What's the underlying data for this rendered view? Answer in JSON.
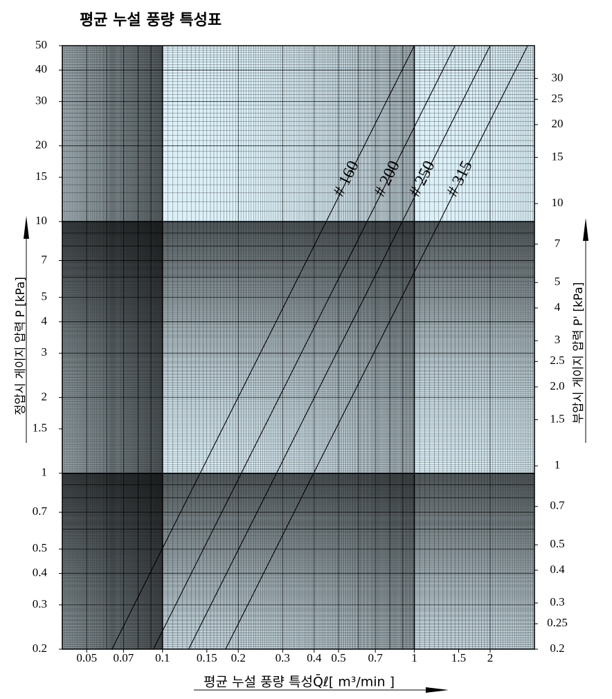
{
  "chart_data": {
    "type": "line",
    "title": "평균 누설 풍량 특성표",
    "xlabel": "평균 누설 풍량 특성Q̄ℓ[ m³/min ]",
    "ylabel": "정압시 게이지 압력  P  [kPa]",
    "y2label": "부압시 게이지 압력  P' [kPa]",
    "xscale": "log",
    "yscale": "log",
    "grid": true,
    "xlim": [
      0.04,
      3
    ],
    "ylim": [
      0.2,
      50
    ],
    "y2lim": [
      0.2,
      40
    ],
    "xticks": [
      0.05,
      0.07,
      0.1,
      0.15,
      0.2,
      0.3,
      0.4,
      0.5,
      0.7,
      1,
      1.5,
      2
    ],
    "yticks": [
      50,
      40,
      30,
      20,
      15,
      10,
      7,
      5,
      4,
      3,
      2,
      1.5,
      1,
      0.7,
      0.5,
      0.4,
      0.3,
      0.2
    ],
    "y2ticks": [
      30,
      25,
      20,
      15,
      10,
      7,
      5,
      4,
      3,
      2.5,
      {
        "value": 2,
        "label": "2.0"
      },
      1.5,
      1,
      0.7,
      0.5,
      0.4,
      0.3,
      0.25,
      0.2
    ],
    "series": [
      {
        "name": "# 160",
        "color": "#000000",
        "x": [
          0.063,
          1.0
        ],
        "values": [
          0.2,
          50
        ]
      },
      {
        "name": "# 200",
        "color": "#000000",
        "x": [
          0.092,
          1.45
        ],
        "values": [
          0.2,
          50
        ]
      },
      {
        "name": "# 250",
        "color": "#000000",
        "x": [
          0.127,
          2.0
        ],
        "values": [
          0.2,
          50
        ]
      },
      {
        "name": "# 315",
        "color": "#000000",
        "x": [
          0.178,
          2.82
        ],
        "values": [
          0.2,
          50
        ]
      }
    ]
  }
}
